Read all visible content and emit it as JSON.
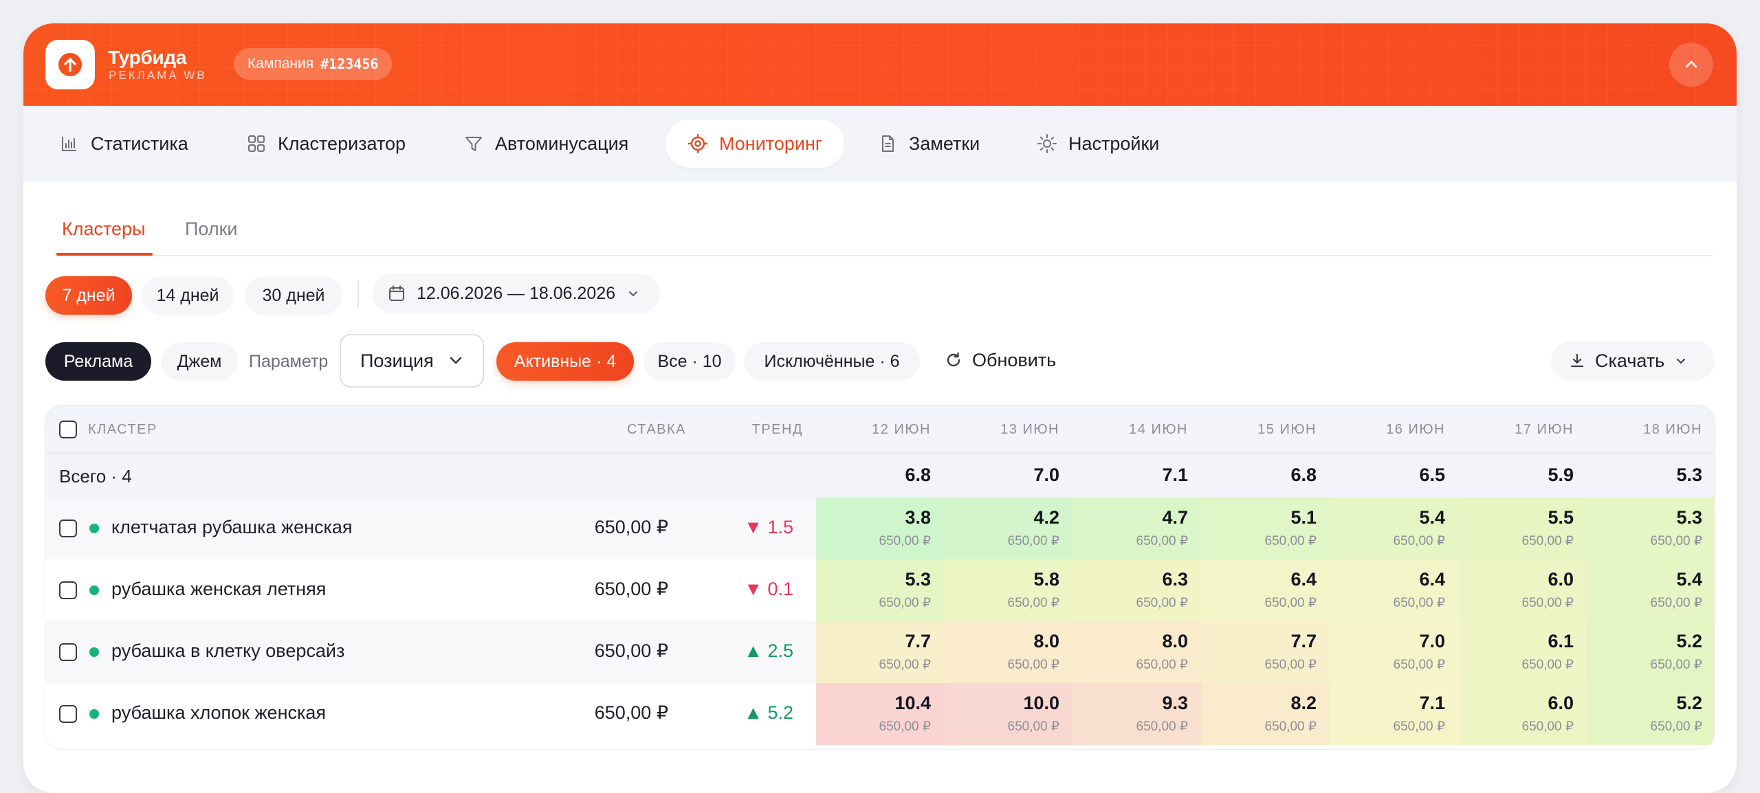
{
  "app": {
    "name": "Турбида",
    "subtitle": "РЕКЛАМА WB",
    "campaign_label": "Кампания",
    "campaign_id": "#123456"
  },
  "nav": {
    "items": [
      {
        "label": "Статистика",
        "icon": "bar-chart-icon"
      },
      {
        "label": "Кластеризатор",
        "icon": "grid-icon"
      },
      {
        "label": "Автоминусация",
        "icon": "filter-icon"
      },
      {
        "label": "Мониторинг",
        "icon": "target-icon",
        "active": true
      },
      {
        "label": "Заметки",
        "icon": "document-icon"
      },
      {
        "label": "Настройки",
        "icon": "sun-settings-icon"
      }
    ]
  },
  "subtabs": [
    "Кластеры",
    "Полки"
  ],
  "period": {
    "options": [
      "7 дней",
      "14 дней",
      "30 дней"
    ],
    "selected": "7 дней",
    "date_range": "12.06.2026 — 18.06.2026"
  },
  "filters": {
    "source": [
      "Реклама",
      "Джем"
    ],
    "param_label": "Параметр",
    "param_value": "Позиция",
    "status": [
      "Активные · 4",
      "Все · 10",
      "Исключённые · 6"
    ],
    "refresh": "Обновить",
    "download": "Скачать"
  },
  "table": {
    "headers": {
      "cluster": "КЛАСТЕР",
      "rate": "СТАВКА",
      "trend": "ТРЕНД",
      "days": [
        "12 ИЮН",
        "13 ИЮН",
        "14 ИЮН",
        "15 ИЮН",
        "16 ИЮН",
        "17 ИЮН",
        "18 ИЮН"
      ]
    },
    "total": {
      "label": "Всего · 4",
      "values": [
        "6.8",
        "7.0",
        "7.1",
        "6.8",
        "6.5",
        "5.9",
        "5.3"
      ]
    },
    "rows": [
      {
        "name": "клетчатая рубашка женская",
        "rate": "650,00 ₽",
        "trend": "▼ 1.5",
        "trend_dir": "down",
        "values": [
          "3.8",
          "4.2",
          "4.7",
          "5.1",
          "5.4",
          "5.5",
          "5.3"
        ],
        "sub": "650,00 ₽",
        "colors": [
          "#cff5cd",
          "#d4f5cb",
          "#daf5c8",
          "#e1f6c6",
          "#e5f5c4",
          "#e7f5c3",
          "#e5f5c4"
        ]
      },
      {
        "name": "рубашка женская летняя",
        "rate": "650,00 ₽",
        "trend": "▼ 0.1",
        "trend_dir": "down",
        "values": [
          "5.3",
          "5.8",
          "6.3",
          "6.4",
          "6.4",
          "6.0",
          "5.4"
        ],
        "sub": "650,00 ₽",
        "colors": [
          "#e5f5c4",
          "#ecf5c4",
          "#f1f5c6",
          "#f2f5c7",
          "#f2f5c7",
          "#eef5c5",
          "#e6f5c4"
        ]
      },
      {
        "name": "рубашка в клетку оверсайз",
        "rate": "650,00 ₽",
        "trend": "▲ 2.5",
        "trend_dir": "up",
        "values": [
          "7.7",
          "8.0",
          "8.0",
          "7.7",
          "7.0",
          "6.1",
          "5.2"
        ],
        "sub": "650,00 ₽",
        "colors": [
          "#f8efcb",
          "#f9ebcb",
          "#f9ebcb",
          "#f8efcb",
          "#f6f5c9",
          "#eff5c5",
          "#e4f5c4"
        ]
      },
      {
        "name": "рубашка хлопок женская",
        "rate": "650,00 ₽",
        "trend": "▲ 5.2",
        "trend_dir": "up",
        "values": [
          "10.4",
          "10.0",
          "9.3",
          "8.2",
          "7.1",
          "6.0",
          "5.2"
        ],
        "sub": "650,00 ₽",
        "colors": [
          "#f9d4d2",
          "#f9d8d2",
          "#f9dfcf",
          "#f9ebcb",
          "#f7f4c9",
          "#eef5c5",
          "#e4f5c4"
        ]
      }
    ]
  },
  "colors": {
    "accent": "#e8461d",
    "dark": "#1c1b29",
    "up": "#139a63",
    "down": "#e8365a"
  }
}
